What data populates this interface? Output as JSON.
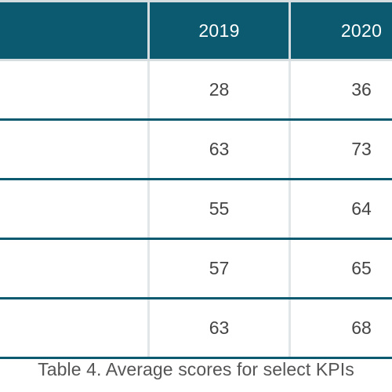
{
  "table": {
    "headers": [
      "",
      "2019",
      "2020"
    ],
    "rows": [
      [
        "",
        "28",
        "36"
      ],
      [
        "",
        "63",
        "73"
      ],
      [
        "",
        "55",
        "64"
      ],
      [
        "",
        "57",
        "65"
      ],
      [
        "",
        "63",
        "68"
      ]
    ]
  },
  "caption": "Table 4. Average scores for select KPIs",
  "colors": {
    "header_bg": "#0b5a6f",
    "row_divider": "#0b5a6f",
    "grid_line": "#d6dde1",
    "body_text": "#444444"
  }
}
